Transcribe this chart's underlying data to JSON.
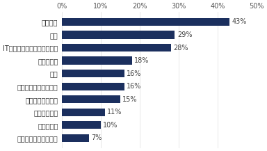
{
  "categories": [
    "広告・出版・マスコミ",
    "物流・運輸",
    "建設・不動産",
    "コンサルティング",
    "流通・小売・サービス",
    "金融",
    "メディカル",
    "IT・インターネット・ゲーム",
    "商社",
    "メーカー"
  ],
  "values": [
    7,
    10,
    11,
    15,
    16,
    16,
    18,
    28,
    29,
    43
  ],
  "bar_color": "#1b2f5e",
  "xlim": [
    0,
    50
  ],
  "xticks": [
    0,
    10,
    20,
    30,
    40,
    50
  ],
  "figsize": [
    3.84,
    2.17
  ],
  "dpi": 100,
  "background_color": "#ffffff",
  "label_fontsize": 7,
  "value_fontsize": 7,
  "tick_fontsize": 7
}
